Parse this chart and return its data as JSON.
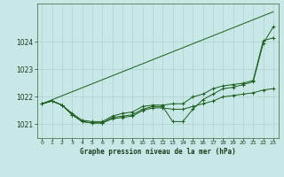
{
  "xlabel": "Graphe pression niveau de la mer (hPa)",
  "ylim": [
    1020.5,
    1025.4
  ],
  "xlim": [
    -0.5,
    23.5
  ],
  "yticks": [
    1021,
    1022,
    1023,
    1024
  ],
  "xticks": [
    0,
    1,
    2,
    3,
    4,
    5,
    6,
    7,
    8,
    9,
    10,
    11,
    12,
    13,
    14,
    15,
    16,
    17,
    18,
    19,
    20,
    21,
    22,
    23
  ],
  "bg_color": "#c8e8e8",
  "grid_color_major": "#b0d0d0",
  "grid_color_minor": "#d4ecec",
  "line_color": "#1a5c1a",
  "straight_line": {
    "x": [
      0,
      23
    ],
    "y": [
      1021.75,
      1025.1
    ]
  },
  "series": [
    [
      1021.75,
      1021.85,
      1021.7,
      1021.35,
      1021.1,
      1021.05,
      1021.05,
      1021.2,
      1021.25,
      1021.3,
      1021.5,
      1021.6,
      1021.6,
      1021.55,
      1021.55,
      1021.65,
      1021.75,
      1021.85,
      1022.0,
      1022.05,
      1022.1,
      1022.15,
      1022.25,
      1022.3
    ],
    [
      1021.75,
      1021.85,
      1021.7,
      1021.35,
      1021.1,
      1021.05,
      1021.05,
      1021.25,
      1021.3,
      1021.35,
      1021.55,
      1021.65,
      1021.65,
      1021.1,
      1021.1,
      1021.55,
      1021.9,
      1022.1,
      1022.3,
      1022.35,
      1022.45,
      1022.55,
      1023.95,
      1024.55
    ],
    [
      1021.75,
      1021.85,
      1021.7,
      1021.4,
      1021.15,
      1021.1,
      1021.1,
      1021.3,
      1021.4,
      1021.45,
      1021.65,
      1021.7,
      1021.7,
      1021.75,
      1021.75,
      1022.0,
      1022.1,
      1022.3,
      1022.4,
      1022.45,
      1022.5,
      1022.6,
      1024.05,
      1024.15
    ]
  ]
}
